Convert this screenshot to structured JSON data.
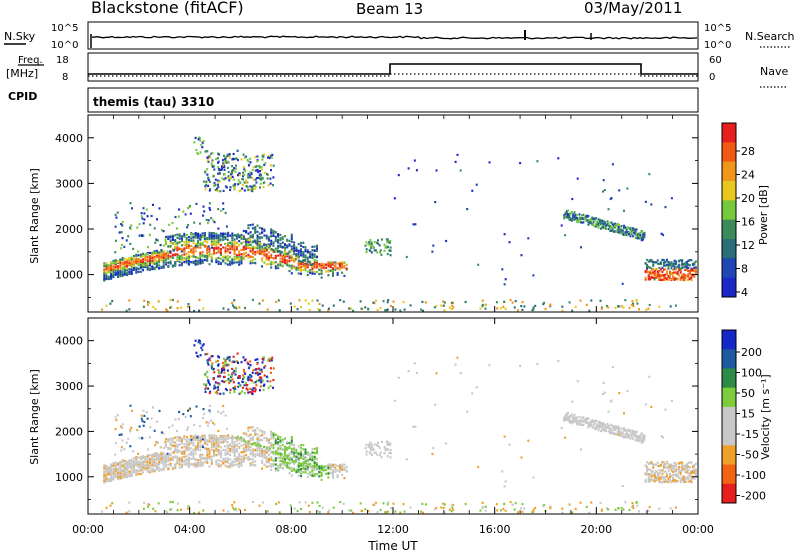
{
  "header": {
    "station": "Blackstone (fitACF)",
    "beam": "Beam 13",
    "date": "03/May/2011"
  },
  "panels": {
    "nsky_label": "N.Sky",
    "nsearch_label": "N.Search",
    "noise_ticks": [
      "10^5",
      "10^0"
    ],
    "freq_label_1": "Freq.",
    "freq_label_2": "[MHz]",
    "freq_ticks": [
      "18",
      "8"
    ],
    "nave_label": "Nave",
    "nave_ticks": [
      "60",
      "0"
    ],
    "cpid_label": "CPID",
    "cpid_value": "themis (tau) 3310"
  },
  "colors": {
    "frame": "#000000",
    "power_scale": [
      "#1a28c8",
      "#1e46b4",
      "#2a6e7a",
      "#3a8a5a",
      "#76c83c",
      "#e8c81e",
      "#f09618",
      "#f05a14",
      "#e61e1e"
    ],
    "velocity_scale": [
      "#1428c8",
      "#1e5aa0",
      "#2e8a46",
      "#7ccc3c",
      "#c8c8c8",
      "#c8c8c8",
      "#f0a028",
      "#f06414",
      "#e61e1e"
    ]
  },
  "chart_data": [
    {
      "type": "heatmap",
      "name": "power",
      "ylabel": "Slant Range [km]",
      "y_ticks": [
        "4000",
        "3000",
        "2000",
        "1000"
      ],
      "colorbar_label": "Power [dB]",
      "colorbar_ticks": [
        "28",
        "24",
        "20",
        "16",
        "12",
        "8",
        "4"
      ],
      "xlim_hours": [
        0,
        24
      ],
      "ylim_km": [
        180,
        4500
      ]
    },
    {
      "type": "heatmap",
      "name": "velocity",
      "ylabel": "Slant Range [km]",
      "y_ticks": [
        "4000",
        "3000",
        "2000",
        "1000"
      ],
      "colorbar_label": "Velocity [m s⁻¹]",
      "colorbar_ticks": [
        "200",
        "100",
        "50",
        "15",
        "-15",
        "-50",
        "-100",
        "-200"
      ],
      "xlim_hours": [
        0,
        24
      ],
      "ylim_km": [
        180,
        4500
      ]
    }
  ],
  "x_axis": {
    "ticks": [
      "00:00",
      "04:00",
      "08:00",
      "12:00",
      "16:00",
      "20:00",
      "00:00"
    ],
    "label": "Time UT"
  }
}
